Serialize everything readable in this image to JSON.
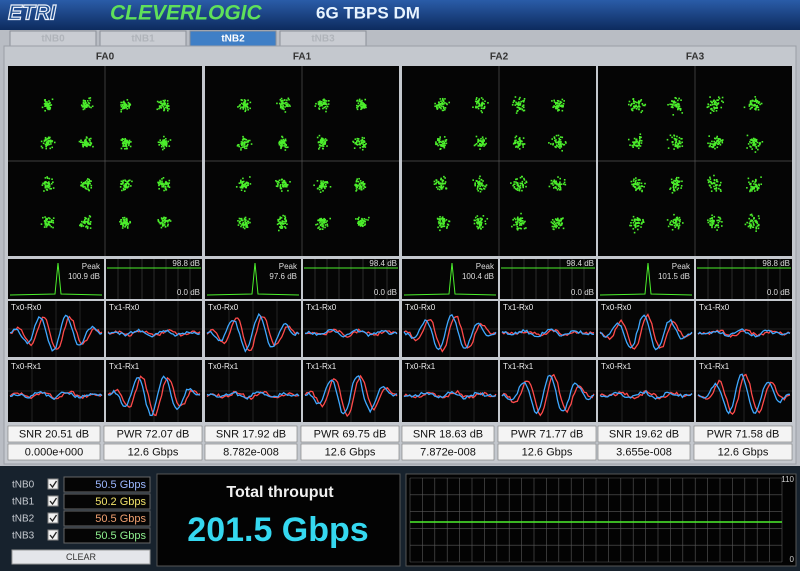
{
  "header": {
    "logo_etri": "ETRI",
    "logo_clever": "CLEVERLOGIC",
    "product": "6G TBPS DM"
  },
  "tabs": [
    "tNB0",
    "tNB1",
    "tNB2",
    "tNB3"
  ],
  "active_tab": 2,
  "panels": [
    {
      "name": "FA0",
      "peak_label": "Peak",
      "peak": "100.9 dB",
      "spectrum_top": "98.8 dB",
      "spectrum_bottom": "0.0 dB",
      "plots": [
        "Tx0-Rx0",
        "Tx1-Rx0",
        "Tx0-Rx1",
        "Tx1-Rx1"
      ],
      "snr": "SNR 20.51 dB",
      "pwr": "PWR 72.07 dB",
      "ber": "0.000e+000",
      "rate": "12.6 Gbps"
    },
    {
      "name": "FA1",
      "peak_label": "Peak",
      "peak": "97.6 dB",
      "spectrum_top": "98.4 dB",
      "spectrum_bottom": "0.0 dB",
      "plots": [
        "Tx0-Rx0",
        "Tx1-Rx0",
        "Tx0-Rx1",
        "Tx1-Rx1"
      ],
      "snr": "SNR 17.92 dB",
      "pwr": "PWR 69.75 dB",
      "ber": "8.782e-008",
      "rate": "12.6 Gbps"
    },
    {
      "name": "FA2",
      "peak_label": "Peak",
      "peak": "100.4 dB",
      "spectrum_top": "98.4 dB",
      "spectrum_bottom": "0.0 dB",
      "plots": [
        "Tx0-Rx0",
        "Tx1-Rx0",
        "Tx0-Rx1",
        "Tx1-Rx1"
      ],
      "snr": "SNR 18.63 dB",
      "pwr": "PWR 71.77 dB",
      "ber": "7.872e-008",
      "rate": "12.6 Gbps"
    },
    {
      "name": "FA3",
      "peak_label": "Peak",
      "peak": "101.5 dB",
      "spectrum_top": "98.8 dB",
      "spectrum_bottom": "0.0 dB",
      "plots": [
        "Tx0-Rx0",
        "Tx1-Rx0",
        "Tx0-Rx1",
        "Tx1-Rx1"
      ],
      "snr": "SNR 19.62 dB",
      "pwr": "PWR 71.58 dB",
      "ber": "3.655e-008",
      "rate": "12.6 Gbps"
    }
  ],
  "streams": [
    {
      "name": "tNB0",
      "rate": "50.5 Gbps",
      "color": "#9db8ff"
    },
    {
      "name": "tNB1",
      "rate": "50.2 Gbps",
      "color": "#f2e36b"
    },
    {
      "name": "tNB2",
      "rate": "50.5 Gbps",
      "color": "#f0a070"
    },
    {
      "name": "tNB3",
      "rate": "50.5 Gbps",
      "color": "#8ff08f"
    }
  ],
  "clear_button": "CLEAR",
  "total": {
    "label": "Total throuput",
    "value": "201.5 Gbps"
  },
  "graph": {
    "ymax": "110",
    "ymin": "0"
  }
}
